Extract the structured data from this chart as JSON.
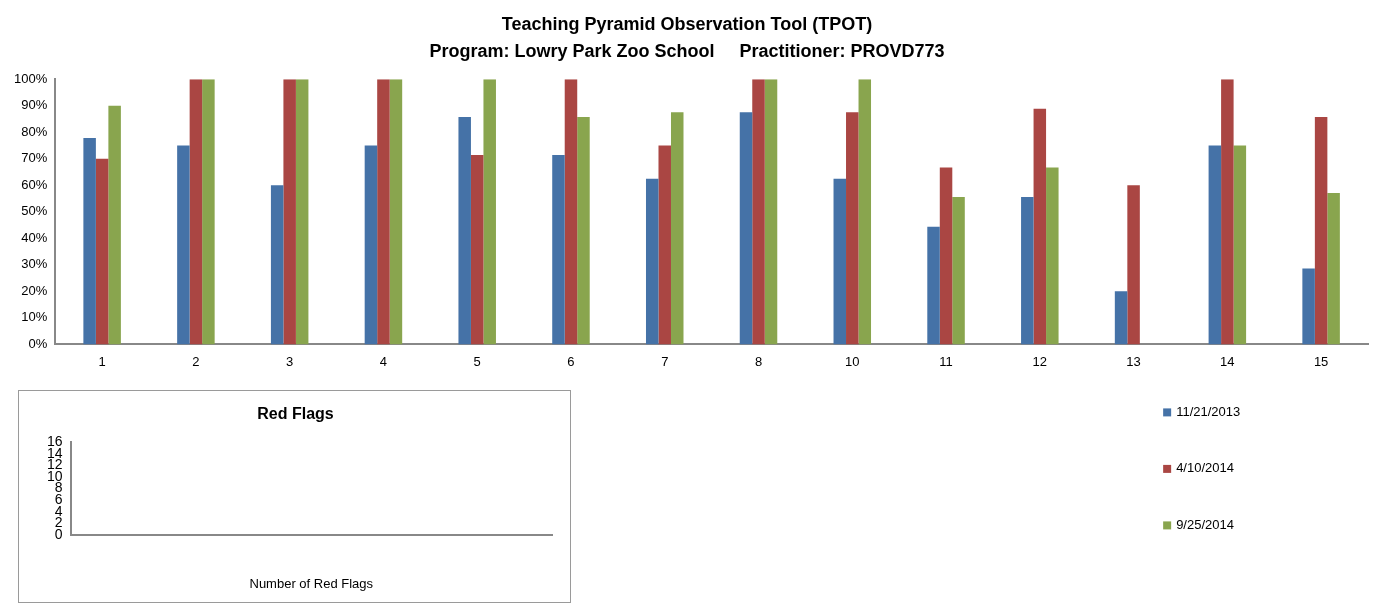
{
  "chart_data": [
    {
      "type": "bar",
      "title": "Teaching Pyramid Observation Tool (TPOT)",
      "subtitle": "Program: Lowry Park Zoo School     Practitioner: PROVD773",
      "categories": [
        "1",
        "2",
        "3",
        "4",
        "5",
        "6",
        "7",
        "8",
        "10",
        "11",
        "12",
        "13",
        "14",
        "15"
      ],
      "series": [
        {
          "name": "11/21/2013",
          "color": "#4572a7",
          "values": [
            77.8,
            75,
            60,
            75,
            85.7,
            71.4,
            62.5,
            87.5,
            62.5,
            44.4,
            55.6,
            20,
            75,
            28.6
          ]
        },
        {
          "name": "4/10/2014",
          "color": "#aa4643",
          "values": [
            70,
            100,
            100,
            100,
            71.4,
            100,
            75,
            100,
            87.5,
            66.7,
            88.9,
            60,
            100,
            85.7
          ]
        },
        {
          "name": "9/25/2014",
          "color": "#89a54e",
          "values": [
            90,
            100,
            100,
            100,
            100,
            85.7,
            87.5,
            100,
            100,
            55.6,
            66.7,
            null,
            75,
            57.1
          ]
        }
      ],
      "ylim": [
        0,
        100
      ],
      "yticks": [
        {
          "value": 0,
          "label": "0%"
        },
        {
          "value": 10,
          "label": "10%"
        },
        {
          "value": 20,
          "label": "20%"
        },
        {
          "value": 30,
          "label": "30%"
        },
        {
          "value": 40,
          "label": "40%"
        },
        {
          "value": 50,
          "label": "50%"
        },
        {
          "value": 60,
          "label": "60%"
        },
        {
          "value": 70,
          "label": "70%"
        },
        {
          "value": 80,
          "label": "80%"
        },
        {
          "value": 90,
          "label": "90%"
        },
        {
          "value": 100,
          "label": "100%"
        }
      ],
      "grid": false,
      "legend": "bottom right"
    },
    {
      "type": "bar",
      "title": "Red Flags",
      "xlabel": "Number of Red Flags",
      "categories": [
        null
      ],
      "values": [
        null
      ],
      "ylim": [
        0,
        16
      ],
      "yticks": [
        0,
        2,
        4,
        6,
        8,
        10,
        12,
        14,
        16
      ],
      "grid": false
    }
  ]
}
